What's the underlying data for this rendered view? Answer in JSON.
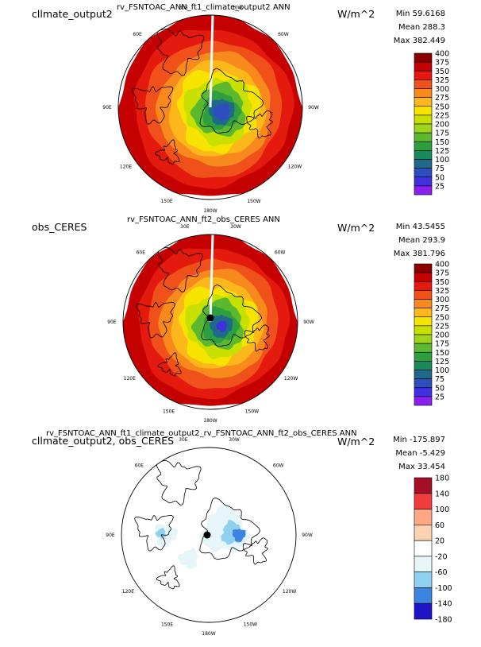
{
  "chart_data": [
    {
      "type": "heatmap",
      "projection": "polar-stereographic-south",
      "left_label": "cllmate_output2",
      "title": "rv_FSNTOAC_ANN_ft1_climate_output2  ANN",
      "units": "W/m^2",
      "stats": {
        "min": "Min 59.6168",
        "mean": "Mean 288.3",
        "max": "Max 382.449"
      },
      "longitude_labels": [
        "30E",
        "30W",
        "60E",
        "60W",
        "90E",
        "90W",
        "120E",
        "120W",
        "150E",
        "150W",
        "180W"
      ],
      "colorbar_levels": [
        "400",
        "375",
        "350",
        "325",
        "300",
        "275",
        "250",
        "225",
        "200",
        "175",
        "150",
        "125",
        "100",
        "75",
        "50",
        "25"
      ],
      "colorbar_colors": [
        "#8b0000",
        "#c40000",
        "#e41a0f",
        "#f0501a",
        "#f7891d",
        "#fcb71a",
        "#f6e400",
        "#c8e000",
        "#9ed41c",
        "#5cb82e",
        "#2e9f3e",
        "#1a8a5a",
        "#1f6a8a",
        "#2e4ec0",
        "#4030e0",
        "#8a1ff0"
      ],
      "field_rings": [
        {
          "radius_frac": 1.0,
          "value": 362
        },
        {
          "radius_frac": 0.86,
          "value": 345
        },
        {
          "radius_frac": 0.74,
          "value": 320
        },
        {
          "radius_frac": 0.62,
          "value": 290
        },
        {
          "radius_frac": 0.52,
          "value": 258
        },
        {
          "radius_frac": 0.44,
          "value": 230
        },
        {
          "radius_frac": 0.36,
          "value": 200
        },
        {
          "radius_frac": 0.28,
          "value": 165
        },
        {
          "radius_frac": 0.2,
          "value": 125
        },
        {
          "radius_frac": 0.14,
          "value": 90
        },
        {
          "radius_frac": 0.09,
          "value": 70
        }
      ]
    },
    {
      "type": "heatmap",
      "projection": "polar-stereographic-south",
      "left_label": "obs_CERES",
      "title": "rv_FSNTOAC_ANN_ft2_obs_CERES  ANN",
      "units": "W/m^2",
      "stats": {
        "min": "Min 43.5455",
        "mean": "Mean 293.9",
        "max": "Max 381.796"
      },
      "longitude_labels": [
        "30E",
        "30W",
        "60E",
        "60W",
        "90E",
        "90W",
        "120E",
        "120W",
        "150E",
        "150W",
        "180W"
      ],
      "colorbar_levels": [
        "400",
        "375",
        "350",
        "325",
        "300",
        "275",
        "250",
        "225",
        "200",
        "175",
        "150",
        "125",
        "100",
        "75",
        "50",
        "25"
      ],
      "colorbar_colors": [
        "#8b0000",
        "#c40000",
        "#e41a0f",
        "#f0501a",
        "#f7891d",
        "#fcb71a",
        "#f6e400",
        "#c8e000",
        "#9ed41c",
        "#5cb82e",
        "#2e9f3e",
        "#1a8a5a",
        "#1f6a8a",
        "#2e4ec0",
        "#4030e0",
        "#8a1ff0"
      ],
      "field_rings": [
        {
          "radius_frac": 1.0,
          "value": 362
        },
        {
          "radius_frac": 0.86,
          "value": 345
        },
        {
          "radius_frac": 0.74,
          "value": 320
        },
        {
          "radius_frac": 0.62,
          "value": 290
        },
        {
          "radius_frac": 0.52,
          "value": 258
        },
        {
          "radius_frac": 0.44,
          "value": 230
        },
        {
          "radius_frac": 0.36,
          "value": 200
        },
        {
          "radius_frac": 0.28,
          "value": 165
        },
        {
          "radius_frac": 0.2,
          "value": 125
        },
        {
          "radius_frac": 0.13,
          "value": 90
        },
        {
          "radius_frac": 0.06,
          "value": 45
        }
      ]
    },
    {
      "type": "heatmap",
      "projection": "polar-stereographic-south",
      "left_label": "cllmate_output2, obs_CERES",
      "title": "rv_FSNTOAC_ANN_ft1_climate_output2_rv_FSNTOAC_ANN_ft2_obs_CERES  ANN",
      "units": "W/m^2",
      "stats": {
        "min": "Min -175.897",
        "mean": "Mean -5.429",
        "max": "Max 33.454"
      },
      "longitude_labels": [
        "30E",
        "30W",
        "60E",
        "60W",
        "90E",
        "90W",
        "120E",
        "120W",
        "150E",
        "150W",
        "180W"
      ],
      "colorbar_levels": [
        "180",
        "140",
        "100",
        "60",
        "20",
        "-20",
        "-60",
        "-100",
        "-140",
        "-180"
      ],
      "colorbar_colors": [
        "#a50f26",
        "#f03c3c",
        "#fda882",
        "#fed2b0",
        "#ffffff",
        "#e6f5f8",
        "#8fd0ef",
        "#3b84e0",
        "#1e14c8"
      ],
      "field_rings": []
    }
  ]
}
